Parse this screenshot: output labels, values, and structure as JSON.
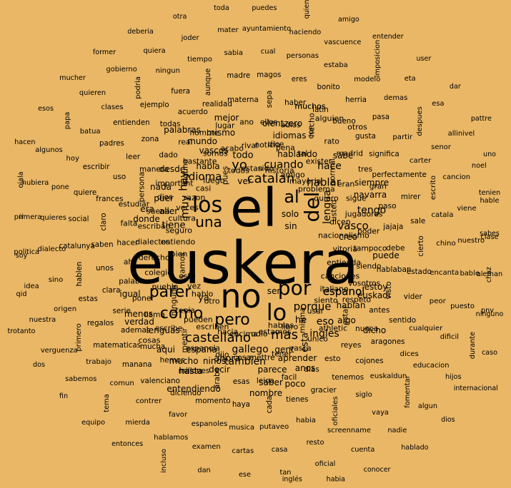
{
  "background": "#E9B766",
  "text_color": "#000000",
  "words": [
    "euskera",
    "el",
    "no",
    "lo",
    "los",
    "por",
    "del",
    "parer",
    "como",
    "pero",
    "castellano",
    "catalan",
    "una",
    "al",
    "mas",
    "yo",
    "idioma",
    "hay",
    "muy",
    "cuando",
    "hablar",
    "porque",
    "espanol",
    "vasco",
    "gallego",
    "lengua",
    "ingles",
    "eso",
    "tengo",
    "hace",
    "tambien",
    "ahora",
    "todo",
    "tiene",
    "esta",
    "espana",
    "navarra",
    "hablando",
    "he",
    "hablan",
    "euskadi",
    "ya",
    "habla",
    "decir",
    "saber",
    "ser",
    "parece",
    "siempre",
    "mismo",
    "idiomas",
    "mundo",
    "vascos",
    "palabras",
    "olentzero",
    "aqui",
    "lenguas",
    "hasta",
    "mucho",
    "ninos",
    "otro",
    "gent",
    "aprender",
    "anos",
    "creo",
    "dicho",
    "ver",
    "poco",
    "sin",
    "solo",
    "desde",
    "nada",
    "puer",
    "aller",
    "donde",
    "era",
    "nombre",
    "hablo",
    "vez",
    "este",
    "vamos",
    "bien",
    "entendiendo",
    "menos",
    "igual",
    "estoy",
    "cosas",
    "verdad",
    "mejor",
    "hecho",
    "muchos",
    "alguien",
    "dice",
    "entiendo",
    "algo",
    "seguro",
    "cultura",
    "veces",
    "razon",
    "casi",
    "luego",
    "sabe",
    "otros",
    "puede",
    "pues",
    "todos",
    "estan",
    "sido",
    "historia",
    "amigo",
    "espanol",
    "mayoria",
    "problema",
    "hablas",
    "quiero",
    "usted",
    "dicen",
    "nacionalismo",
    "vitoria",
    "entienda",
    "canciones",
    "italiano",
    "siento",
    "usar",
    "misma",
    "libro",
    "estamos",
    "odio",
    "encima",
    "hacia",
    "escriben",
    "pueden",
    "tenia",
    "ninguna",
    "pueblo",
    "colegio",
    "derecho",
    "dialectos",
    "escriban",
    "suena",
    "dios",
    "important",
    "alguna",
    "bastante",
    "somos",
    "acabo",
    "rival",
    "noticia",
    "pena",
    "tal",
    "exister",
    "normal",
    "eran",
    "sigue",
    "jugadores",
    "poder",
    "tampoco",
    "siendo",
    "vosotros",
    "respeto",
    "estar",
    "athletic",
    "unico",
    "vasca",
    "tener",
    "mettre",
    "cosa",
    "dijo",
    "espanola",
    "mentir",
    "escribe",
    "llama",
    "poner",
    "palabrer",
    "ahi",
    "hacer",
    "falta",
    "estudiar",
    "muchos",
    "persona",
    "manera",
    "dado",
    "real",
    "hombre",
    "lugar",
    "ano",
    "ellos",
    "adios",
    "con",
    "rato",
    "madrid",
    "tres",
    "gran",
    "paso",
    "jajaja",
    "debe",
    "hablaban",
    "visto",
    "antes",
    "nunca",
    "reyes",
    "esto",
    "dias",
    "facil",
    "leioa",
    "esas",
    "arabe",
    "millones",
    "hemos",
    "mucha",
    "ademas",
    "serie",
    "clara",
    "unos",
    "saben",
    "claro",
    "frances",
    "uso",
    "leer",
    "zona",
    "todas",
    "acuerdo",
    "realidad",
    "materna",
    "sepa",
    "haber",
    "latin",
    "bueno",
    "gusta",
    "significa",
    "perfectamente",
    "mirer",
    "sale",
    "cierto",
    "estado",
    "vider",
    "sentido",
    "aragones",
    "cojones",
    "tenemos",
    "gracier",
    "tienes",
    "cada",
    "haya",
    "momento",
    "diciendo",
    "valenciano",
    "manana",
    "matematicas",
    "regalos",
    "estas",
    "hablen",
    "catalunya",
    "social",
    "quiere",
    "escribir",
    "padres",
    "entienden",
    "ejemplo",
    "fuera",
    "aunque",
    "madre",
    "magos",
    "eres",
    "bonito",
    "herria",
    "pasa",
    "partir",
    "carter",
    "escrito",
    "catala",
    "chino",
    "encanta",
    "peor",
    "cualquier",
    "dices",
    "euskaldun",
    "siglo",
    "oficiales",
    "habia",
    "putaveo",
    "musica",
    "espanoles",
    "favor",
    "contrer",
    "comun",
    "trabajo",
    "primero",
    "origen",
    "sino",
    "dialecto",
    "quieres",
    "pone",
    "hoy",
    "batua",
    "clases",
    "podria",
    "ningun",
    "tiempo",
    "sabia",
    "cual",
    "personas",
    "estaba",
    "modelo",
    "demas",
    "despues",
    "senor",
    "cancion",
    "viene",
    "nuestro",
    "bable",
    "puesto",
    "dificil",
    "educacion",
    "fomentar",
    "vaya",
    "screenname",
    "resto",
    "casa",
    "cartas",
    "examen",
    "hablamos",
    "mierda",
    "tema",
    "sabemos",
    "verguenza",
    "nuestra",
    "idea",
    "politica",
    "primera",
    "hubiera",
    "algunos",
    "papa",
    "quieren",
    "gobierno",
    "quiera",
    "joder",
    "mater",
    "ayuntamiento",
    "haciendo",
    "vascuence",
    "imposicion",
    "eta",
    "esa",
    "allinivel",
    "noel",
    "hable",
    "clase",
    "aleman",
    "pnv",
    "durante",
    "hijos",
    "algun",
    "nadie",
    "cuenta",
    "oficial",
    "tan",
    "ese",
    "dan",
    "incluso",
    "entonces",
    "equipo",
    "fin",
    "dos",
    "trotanto",
    "qid",
    "soy",
    "ir",
    "ojala",
    "hacen",
    "esos",
    "mucher",
    "former",
    "deberia",
    "otra",
    "toda",
    "puedes",
    "quien",
    "amigo",
    "entender",
    "user",
    "dar",
    "pattre",
    "uno",
    "tenien",
    "sabes",
    "chaz",
    "ninguno",
    "hasta",
    "caso",
    "internacional",
    "dios",
    "hablado",
    "conocer",
    "habia",
    "inglés"
  ]
}
